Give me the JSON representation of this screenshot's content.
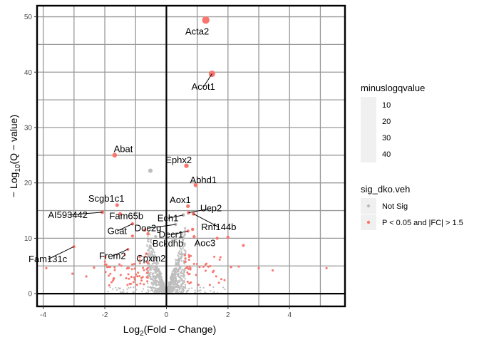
{
  "chart_data": {
    "type": "scatter",
    "xlabel_prefix": "Log",
    "xlabel_sub": "2",
    "xlabel_suffix": "(Fold − Change)",
    "ylabel_prefix": "− Log",
    "ylabel_sub": "10",
    "ylabel_suffix": "(Q − value)",
    "xlim": [
      -4.2,
      5.8
    ],
    "ylim": [
      -2.3,
      52
    ],
    "x_ticks": [
      -4,
      -2,
      0,
      2,
      4
    ],
    "y_ticks": [
      0,
      10,
      20,
      30,
      40,
      50
    ],
    "grid": true,
    "colors": {
      "not_sig": "#bdbdbd",
      "sig": "#f8766d",
      "frame": "#000000",
      "grid": "#999999"
    },
    "legend_size": {
      "title": "minuslogqvalue",
      "labels": [
        "10",
        "20",
        "30",
        "40"
      ]
    },
    "legend_color": {
      "title": "sig_dko.veh",
      "entries": [
        {
          "label": "Not Sig",
          "color": "#bdbdbd"
        },
        {
          "label": "P < 0.05 and |FC| > 1.5",
          "color": "#f8766d"
        }
      ]
    },
    "labeled_points": [
      {
        "gene": "Acta2",
        "x": 1.28,
        "y": 49.4,
        "sig": true,
        "label_x": 1.0,
        "label_y": 47.3
      },
      {
        "gene": "Acot1",
        "x": 1.48,
        "y": 39.7,
        "sig": true,
        "label_x": 1.2,
        "label_y": 37.3
      },
      {
        "gene": "Abat",
        "x": -1.68,
        "y": 25.0,
        "sig": true,
        "label_x": -1.4,
        "label_y": 26.1
      },
      {
        "gene": "",
        "x": -0.52,
        "y": 22.2,
        "sig": false
      },
      {
        "gene": "Ephx2",
        "x": 0.65,
        "y": 23.1,
        "sig": true,
        "label_x": 0.4,
        "label_y": 24.1
      },
      {
        "gene": "Abhd1",
        "x": 0.95,
        "y": 19.6,
        "sig": true,
        "label_x": 1.2,
        "label_y": 20.5
      },
      {
        "gene": "Scgb1c1",
        "x": -1.6,
        "y": 16.0,
        "sig": true,
        "label_x": -1.95,
        "label_y": 17.1
      },
      {
        "gene": "Aox1",
        "x": 0.7,
        "y": 15.8,
        "sig": true,
        "label_x": 0.45,
        "label_y": 16.9
      },
      {
        "gene": "Ucp2",
        "x": 0.72,
        "y": 14.6,
        "sig": true,
        "label_x": 1.45,
        "label_y": 15.4
      },
      {
        "gene": "AI593442",
        "x": -2.08,
        "y": 14.7,
        "sig": true,
        "label_x": -3.2,
        "label_y": 14.2
      },
      {
        "gene": "Fam65b",
        "x": -1.5,
        "y": 14.4,
        "sig": true,
        "label_x": -1.3,
        "label_y": 14.0
      },
      {
        "gene": "Ech1",
        "x": 0.55,
        "y": 14.2,
        "sig": false,
        "label_x": 0.05,
        "label_y": 13.6
      },
      {
        "gene": "Rnf144b",
        "x": 0.88,
        "y": 14.4,
        "sig": true,
        "label_x": 1.7,
        "label_y": 12.0
      },
      {
        "gene": "Doc2g",
        "x": 0.3,
        "y": 12.5,
        "sig": false,
        "label_x": -0.6,
        "label_y": 11.8
      },
      {
        "gene": "Gcat",
        "x": -1.1,
        "y": 12.6,
        "sig": true,
        "label_x": -1.6,
        "label_y": 11.3
      },
      {
        "gene": "Decr1",
        "x": 0.7,
        "y": 11.3,
        "sig": true,
        "label_x": 0.15,
        "label_y": 10.6
      },
      {
        "gene": "Aoc3",
        "x": 0.9,
        "y": 10.3,
        "sig": true,
        "label_x": 1.25,
        "label_y": 9.1
      },
      {
        "gene": "Bckdhb",
        "x": 0.3,
        "y": 9.8,
        "sig": false,
        "label_x": 0.05,
        "label_y": 9.0
      },
      {
        "gene": "Fam131c",
        "x": -3.0,
        "y": 8.5,
        "sig": true,
        "label_x": -3.85,
        "label_y": 6.2
      },
      {
        "gene": "Frem2",
        "x": -1.25,
        "y": 8.0,
        "sig": true,
        "label_x": -1.75,
        "label_y": 6.8
      },
      {
        "gene": "Cpxm2",
        "x": -0.65,
        "y": 7.2,
        "sig": true,
        "label_x": -0.5,
        "label_y": 6.3
      },
      {
        "gene": "",
        "x": 2.0,
        "y": 10.2,
        "sig": true
      },
      {
        "gene": "",
        "x": 2.5,
        "y": 8.7,
        "sig": true
      },
      {
        "gene": "",
        "x": -1.1,
        "y": 10.4,
        "sig": true
      },
      {
        "gene": "",
        "x": -0.7,
        "y": 11.5,
        "sig": true
      },
      {
        "gene": "",
        "x": -0.6,
        "y": 10.8,
        "sig": true
      },
      {
        "gene": "",
        "x": 0.85,
        "y": 11.6,
        "sig": true
      },
      {
        "gene": "",
        "x": 1.65,
        "y": 10.0,
        "sig": true
      },
      {
        "gene": "",
        "x": 0.55,
        "y": 10.0,
        "sig": false
      },
      {
        "gene": "",
        "x": -0.35,
        "y": 10.3,
        "sig": false
      }
    ]
  }
}
